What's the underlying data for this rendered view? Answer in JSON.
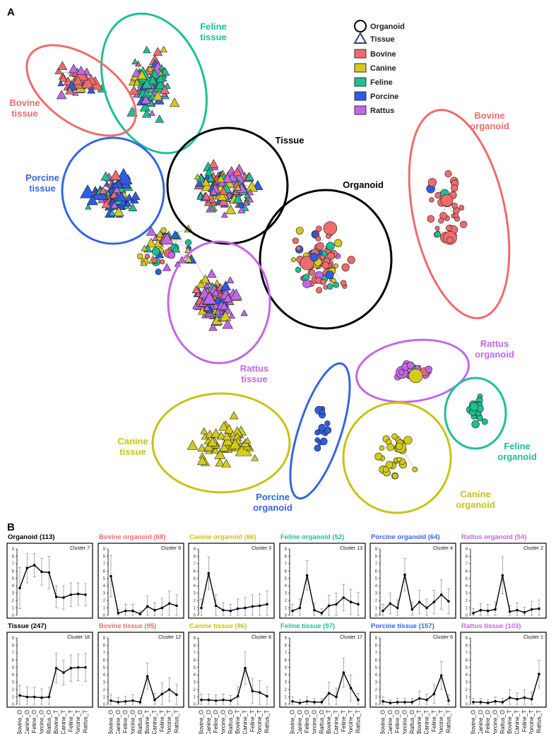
{
  "figure": {
    "panel_a_label": "A",
    "panel_b_label": "B"
  },
  "legend": [
    {
      "label": "Organoid",
      "shape": "circle",
      "color": "#ffffff"
    },
    {
      "label": "Tissue",
      "shape": "triangle",
      "color": "#ffffff"
    },
    {
      "label": "Bovine",
      "shape": "square",
      "color": "#f06b6b"
    },
    {
      "label": "Canine",
      "shape": "square",
      "color": "#d4cc1c"
    },
    {
      "label": "Feline",
      "shape": "square",
      "color": "#1fbf95"
    },
    {
      "label": "Porcine",
      "shape": "square",
      "color": "#2e5ce6"
    },
    {
      "label": "Rattus",
      "shape": "square",
      "color": "#c466e8"
    }
  ],
  "clusters": {
    "feline_tissue": {
      "line1": "Feline",
      "line2": "tissue",
      "color": "#1fbf95"
    },
    "bovine_tissue": {
      "line1": "Bovine",
      "line2": "tissue",
      "color": "#f06b6b"
    },
    "porcine_tissue": {
      "line1": "Porcine",
      "line2": "tissue",
      "color": "#3366e6"
    },
    "tissue": {
      "line1": "Tissue",
      "color": "#000000"
    },
    "organoid": {
      "line1": "Organoid",
      "color": "#000000"
    },
    "bovine_organoid": {
      "line1": "Bovine",
      "line2": "organoid",
      "color": "#f06b6b"
    },
    "rattus_tissue": {
      "line1": "Rattus",
      "line2": "tissue",
      "color": "#c466e8"
    },
    "rattus_organoid": {
      "line1": "Rattus",
      "line2": "organoid",
      "color": "#c466e8"
    },
    "feline_organoid": {
      "line1": "Feline",
      "line2": "organoid",
      "color": "#1fbf95"
    },
    "canine_tissue": {
      "line1": "Canine",
      "line2": "tissue",
      "color": "#c9c216"
    },
    "porcine_organoid": {
      "line1": "Porcine",
      "line2": "organoid",
      "color": "#3366e6"
    },
    "canine_organoid": {
      "line1": "Canine",
      "line2": "organoid",
      "color": "#c9c216"
    }
  },
  "chart_data": {
    "type": "line",
    "x_categories": [
      "Bovine_O",
      "Canine_O",
      "Feline_O",
      "Porcine_O",
      "Rattus_O",
      "Bovine_T",
      "Canine_T",
      "Feline_T",
      "Porcine_T",
      "Rattus_T"
    ],
    "ylim": [
      0,
      9
    ],
    "yticks": [
      0,
      1,
      2,
      3,
      4,
      5,
      6,
      7,
      8,
      9
    ],
    "panels": [
      {
        "title": "Organoid (113)",
        "cluster": "Cluster 7",
        "color": "#000000",
        "values": [
          3.7,
          6.4,
          6.8,
          5.9,
          5.8,
          2.5,
          2.4,
          2.8,
          2.9,
          2.8
        ],
        "errors": [
          2.8,
          2.0,
          1.6,
          1.8,
          2.2,
          1.5,
          1.6,
          1.6,
          1.5,
          1.5
        ]
      },
      {
        "title": "Bovine organoid (68)",
        "cluster": "Cluster 9",
        "color": "#f06b6b",
        "values": [
          5.3,
          0.3,
          0.6,
          0.6,
          0.2,
          1.2,
          0.7,
          1.0,
          1.6,
          1.3
        ],
        "errors": [
          2.8,
          0.5,
          0.9,
          0.9,
          0.4,
          1.4,
          1.0,
          1.3,
          1.7,
          1.5
        ]
      },
      {
        "title": "Canine organoid (66)",
        "cluster": "Cluster 3",
        "color": "#c9c216",
        "values": [
          1.0,
          5.7,
          1.3,
          0.7,
          0.6,
          0.9,
          1.0,
          1.2,
          1.3,
          1.5
        ],
        "errors": [
          1.2,
          2.2,
          1.5,
          1.0,
          0.9,
          1.3,
          1.4,
          1.6,
          1.6,
          1.8
        ]
      },
      {
        "title": "Feline organoid (52)",
        "cluster": "Cluster 13",
        "color": "#1fbf95",
        "values": [
          0.6,
          1.0,
          5.4,
          0.7,
          0.3,
          1.3,
          1.5,
          2.4,
          1.8,
          1.5
        ],
        "errors": [
          0.9,
          1.2,
          2.0,
          0.9,
          0.6,
          1.4,
          1.5,
          1.8,
          1.7,
          1.6
        ]
      },
      {
        "title": "Porcine organoid (64)",
        "cluster": "Cluster 4",
        "color": "#3366e6",
        "values": [
          0.6,
          1.6,
          1.0,
          5.5,
          0.8,
          1.8,
          1.0,
          1.8,
          2.8,
          1.9
        ],
        "errors": [
          0.9,
          1.4,
          1.1,
          2.2,
          1.0,
          1.6,
          1.2,
          1.6,
          2.0,
          1.7
        ]
      },
      {
        "title": "Rattus organoid (54)",
        "cluster": "Cluster 2",
        "color": "#c466e8",
        "values": [
          0.3,
          0.7,
          0.6,
          0.8,
          5.4,
          0.5,
          0.7,
          0.4,
          0.8,
          0.9
        ],
        "errors": [
          0.6,
          0.9,
          0.9,
          1.0,
          2.5,
          0.8,
          1.0,
          0.7,
          1.1,
          1.2
        ]
      },
      {
        "title": "Tissue (247)",
        "cluster": "Cluster 18",
        "color": "#000000",
        "values": [
          1.2,
          1.0,
          1.0,
          0.9,
          1.0,
          4.9,
          4.3,
          4.9,
          5.0,
          5.0
        ],
        "errors": [
          1.4,
          1.4,
          1.3,
          1.2,
          1.3,
          2.0,
          1.7,
          1.8,
          1.8,
          1.9
        ]
      },
      {
        "title": "Bovine tissue (95)",
        "cluster": "Cluster 12",
        "color": "#f06b6b",
        "values": [
          0.5,
          0.3,
          0.4,
          0.5,
          0.3,
          3.8,
          0.6,
          1.4,
          2.0,
          1.3
        ],
        "errors": [
          0.8,
          0.6,
          0.7,
          0.8,
          0.6,
          1.8,
          0.9,
          1.5,
          1.6,
          1.4
        ]
      },
      {
        "title": "Canine tissue (86)",
        "cluster": "Cluster 8",
        "color": "#c9c216",
        "values": [
          0.6,
          0.6,
          0.5,
          0.6,
          0.5,
          1.1,
          4.9,
          1.8,
          1.6,
          1.1
        ],
        "errors": [
          0.8,
          0.8,
          0.8,
          0.8,
          0.7,
          1.3,
          2.2,
          1.7,
          1.6,
          1.3
        ]
      },
      {
        "title": "Feline tissue (97)",
        "cluster": "Cluster 17",
        "color": "#1fbf95",
        "values": [
          0.4,
          0.2,
          0.4,
          0.3,
          0.3,
          1.5,
          1.0,
          4.3,
          2.2,
          0.6
        ],
        "errors": [
          0.6,
          0.4,
          0.6,
          0.5,
          0.5,
          1.5,
          1.2,
          2.0,
          1.8,
          0.9
        ]
      },
      {
        "title": "Porcine tissue (157)",
        "cluster": "Cluster 6",
        "color": "#3366e6",
        "values": [
          0.4,
          0.2,
          0.3,
          0.3,
          0.3,
          0.8,
          0.6,
          1.4,
          3.9,
          0.5
        ],
        "errors": [
          0.6,
          0.4,
          0.5,
          0.5,
          0.5,
          1.0,
          0.8,
          1.3,
          1.9,
          0.8
        ]
      },
      {
        "title": "Rattus tissue (103)",
        "cluster": "Cluster 1",
        "color": "#c466e8",
        "values": [
          0.3,
          0.3,
          0.2,
          0.4,
          0.3,
          0.9,
          0.7,
          0.9,
          0.7,
          4.1
        ],
        "errors": [
          0.5,
          0.5,
          0.4,
          0.6,
          0.5,
          1.1,
          0.9,
          1.1,
          1.0,
          1.9
        ]
      }
    ]
  }
}
